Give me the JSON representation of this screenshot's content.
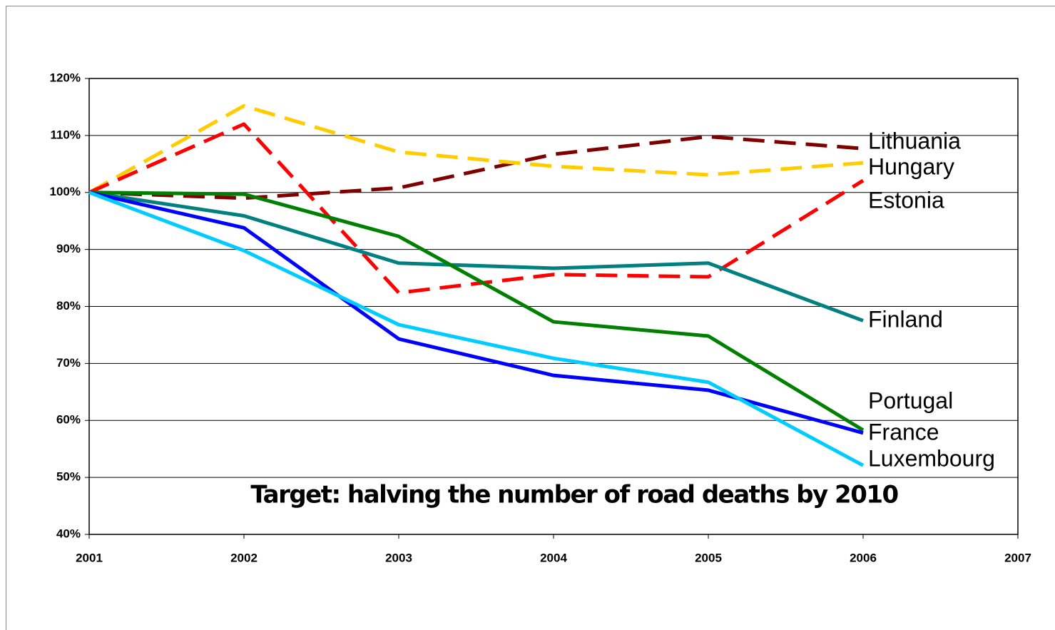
{
  "chart_data": {
    "type": "line",
    "annotation": "Target: halving the number of road deaths by 2010",
    "x": [
      2001,
      2002,
      2003,
      2004,
      2005,
      2006
    ],
    "xlim": [
      2001,
      2007
    ],
    "xticks": [
      2001,
      2002,
      2003,
      2004,
      2005,
      2006,
      2007
    ],
    "ylim": [
      40,
      120
    ],
    "yticks": [
      {
        "value": 40,
        "label": "40%"
      },
      {
        "value": 50,
        "label": "50%"
      },
      {
        "value": 60,
        "label": "60%"
      },
      {
        "value": 70,
        "label": "70%"
      },
      {
        "value": 80,
        "label": "80%"
      },
      {
        "value": 90,
        "label": "90%"
      },
      {
        "value": 100,
        "label": "100%"
      },
      {
        "value": 110,
        "label": "110%"
      },
      {
        "value": 120,
        "label": "120%"
      }
    ],
    "grid": true,
    "series": [
      {
        "name": "Lithuania",
        "color": "#800000",
        "dashed": true,
        "values": [
          100,
          99.0,
          100.8,
          106.7,
          109.8,
          107.7
        ]
      },
      {
        "name": "Hungary",
        "color": "#ffcc00",
        "dashed": true,
        "values": [
          100,
          115.2,
          107.1,
          104.6,
          103.1,
          105.2
        ]
      },
      {
        "name": "Estonia",
        "color": "#ff0000",
        "dashed": true,
        "values": [
          100,
          112.0,
          82.4,
          85.6,
          85.2,
          102.1
        ]
      },
      {
        "name": "Finland",
        "color": "#008080",
        "dashed": false,
        "values": [
          100,
          95.9,
          87.6,
          86.7,
          87.6,
          77.5
        ]
      },
      {
        "name": "Portugal",
        "color": "#008000",
        "dashed": false,
        "values": [
          100,
          99.7,
          92.3,
          77.3,
          74.8,
          58.3
        ]
      },
      {
        "name": "France",
        "color": "#0000ff",
        "dashed": false,
        "values": [
          100,
          93.8,
          74.3,
          67.9,
          65.3,
          57.8
        ]
      },
      {
        "name": "Luxembourg",
        "color": "#00ccff",
        "dashed": false,
        "values": [
          100,
          89.8,
          76.8,
          70.9,
          66.7,
          52.1
        ]
      }
    ]
  }
}
